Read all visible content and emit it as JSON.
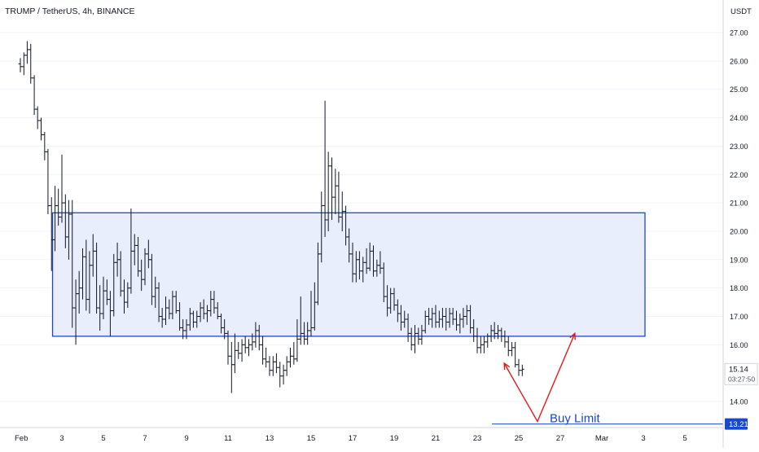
{
  "header": {
    "symbol": "TRUMP / TetherUS, 4h, BINANCE",
    "currency": "USDT"
  },
  "price_scale": {
    "ticks": [
      "27.00",
      "26.00",
      "25.00",
      "24.00",
      "23.00",
      "22.00",
      "21.00",
      "20.00",
      "19.00",
      "18.00",
      "17.00",
      "16.00",
      "14.00"
    ],
    "tick_values": [
      27,
      26,
      25,
      24,
      23,
      22,
      21,
      20,
      19,
      18,
      17,
      16,
      14
    ]
  },
  "time_axis": {
    "labels": [
      "Feb",
      "3",
      "5",
      "7",
      "9",
      "11",
      "13",
      "15",
      "17",
      "19",
      "21",
      "23",
      "25",
      "27",
      "Mar",
      "3",
      "5"
    ]
  },
  "current_price": {
    "price": "15.14",
    "countdown": "03:27:50",
    "color": "#131722"
  },
  "buy_limit": {
    "label": "Buy Limit",
    "price": "13.21",
    "value": 13.21,
    "color": "#1848cc"
  },
  "zone": {
    "top": 20.65,
    "bottom": 16.3,
    "fill": "#e8eefc",
    "stroke": "#1848cc"
  },
  "projection": {
    "color": "#e01a1a",
    "points": [
      [
        24.3,
        15.35
      ],
      [
        25.9,
        13.3
      ],
      [
        27.7,
        16.4
      ]
    ]
  },
  "colors": {
    "bars": "#131722",
    "grid": "#f0f3fa",
    "axis": "#d1d4dc",
    "text": "#131722"
  },
  "chart_data": {
    "type": "ohlc",
    "title": "TRUMP / TetherUS, 4h, BINANCE",
    "ylabel": "USDT",
    "x_unit": "day of February (4h bars)",
    "ylim": [
      13.0,
      27.5
    ],
    "xlim": [
      1,
      34
    ],
    "bars": [
      [
        1.0,
        25.9,
        26.1,
        25.6,
        25.8
      ],
      [
        1.17,
        25.8,
        26.3,
        25.5,
        26.2
      ],
      [
        1.33,
        26.2,
        26.7,
        25.9,
        26.4
      ],
      [
        1.5,
        26.4,
        26.6,
        25.2,
        25.4
      ],
      [
        1.67,
        25.4,
        25.5,
        24.1,
        24.3
      ],
      [
        1.83,
        24.3,
        24.4,
        23.6,
        23.9
      ],
      [
        2.0,
        23.9,
        24.0,
        23.2,
        23.4
      ],
      [
        2.17,
        23.4,
        23.5,
        22.5,
        22.8
      ],
      [
        2.33,
        22.8,
        22.9,
        20.6,
        20.9
      ],
      [
        2.5,
        20.9,
        21.2,
        18.6,
        19.7
      ],
      [
        2.67,
        19.7,
        21.6,
        19.3,
        20.9
      ],
      [
        2.83,
        20.9,
        21.5,
        20.2,
        20.5
      ],
      [
        3.0,
        20.5,
        22.7,
        20.3,
        21.0
      ],
      [
        3.17,
        21.0,
        21.3,
        19.4,
        19.8
      ],
      [
        3.33,
        19.8,
        21.1,
        19.0,
        20.6
      ],
      [
        3.5,
        20.6,
        21.1,
        16.6,
        17.3
      ],
      [
        3.67,
        17.3,
        18.3,
        16.0,
        17.8
      ],
      [
        3.83,
        17.8,
        18.6,
        17.1,
        18.0
      ],
      [
        4.0,
        18.0,
        19.4,
        17.6,
        19.1
      ],
      [
        4.17,
        19.1,
        19.7,
        17.2,
        17.6
      ],
      [
        4.33,
        17.6,
        19.3,
        17.1,
        18.8
      ],
      [
        4.5,
        18.8,
        19.9,
        18.4,
        19.3
      ],
      [
        4.67,
        19.3,
        19.6,
        17.1,
        17.3
      ],
      [
        4.83,
        17.3,
        18.1,
        16.5,
        17.1
      ],
      [
        5.0,
        17.1,
        18.4,
        16.9,
        17.9
      ],
      [
        5.17,
        17.9,
        18.3,
        17.4,
        17.6
      ],
      [
        5.33,
        17.6,
        17.9,
        16.3,
        17.2
      ],
      [
        5.5,
        17.2,
        19.2,
        17.0,
        18.9
      ],
      [
        5.67,
        18.9,
        19.6,
        18.4,
        19.0
      ],
      [
        5.83,
        19.0,
        19.3,
        17.7,
        17.9
      ],
      [
        6.0,
        17.9,
        18.3,
        17.1,
        17.5
      ],
      [
        6.17,
        17.5,
        18.2,
        17.3,
        18.0
      ],
      [
        6.33,
        18.0,
        20.8,
        17.8,
        19.3
      ],
      [
        6.5,
        19.3,
        19.9,
        18.8,
        19.5
      ],
      [
        6.67,
        19.5,
        19.8,
        18.4,
        18.6
      ],
      [
        6.83,
        18.6,
        19.0,
        17.9,
        18.3
      ],
      [
        7.0,
        18.3,
        19.4,
        18.1,
        19.2
      ],
      [
        7.17,
        19.2,
        19.7,
        18.7,
        19.0
      ],
      [
        7.33,
        19.0,
        19.2,
        17.4,
        17.7
      ],
      [
        7.5,
        17.7,
        18.4,
        17.3,
        18.0
      ],
      [
        7.67,
        18.0,
        18.2,
        16.8,
        17.0
      ],
      [
        7.83,
        17.0,
        17.3,
        16.6,
        16.9
      ],
      [
        8.0,
        16.9,
        17.7,
        16.7,
        17.3
      ],
      [
        8.17,
        17.3,
        17.6,
        16.9,
        17.1
      ],
      [
        8.33,
        17.1,
        17.9,
        16.9,
        17.7
      ],
      [
        8.5,
        17.7,
        17.9,
        17.1,
        17.2
      ],
      [
        8.67,
        17.2,
        17.5,
        16.5,
        16.6
      ],
      [
        8.83,
        16.6,
        16.9,
        16.2,
        16.5
      ],
      [
        9.0,
        16.5,
        16.9,
        16.2,
        16.7
      ],
      [
        9.17,
        16.7,
        17.3,
        16.5,
        17.1
      ],
      [
        9.33,
        17.1,
        17.2,
        16.6,
        16.8
      ],
      [
        9.5,
        16.8,
        17.2,
        16.6,
        17.0
      ],
      [
        9.67,
        17.0,
        17.5,
        16.8,
        17.3
      ],
      [
        9.83,
        17.3,
        17.6,
        16.9,
        17.1
      ],
      [
        10.0,
        17.1,
        17.4,
        16.8,
        17.2
      ],
      [
        10.17,
        17.2,
        17.9,
        17.0,
        17.6
      ],
      [
        10.33,
        17.6,
        17.9,
        17.1,
        17.3
      ],
      [
        10.5,
        17.3,
        17.5,
        16.9,
        17.0
      ],
      [
        10.67,
        17.0,
        17.1,
        16.4,
        16.6
      ],
      [
        10.83,
        16.6,
        16.9,
        16.2,
        16.4
      ],
      [
        11.0,
        16.4,
        16.5,
        15.3,
        15.6
      ],
      [
        11.17,
        15.6,
        16.1,
        14.3,
        15.3
      ],
      [
        11.33,
        15.3,
        16.4,
        15.0,
        15.8
      ],
      [
        11.5,
        15.8,
        16.1,
        15.5,
        15.7
      ],
      [
        11.67,
        15.7,
        16.2,
        15.4,
        16.0
      ],
      [
        11.83,
        16.0,
        16.3,
        15.7,
        15.9
      ],
      [
        12.0,
        15.9,
        16.2,
        15.6,
        16.0
      ],
      [
        12.17,
        16.0,
        16.4,
        15.8,
        16.1
      ],
      [
        12.33,
        16.1,
        16.8,
        15.9,
        16.5
      ],
      [
        12.5,
        16.5,
        16.7,
        15.8,
        16.0
      ],
      [
        12.67,
        16.0,
        16.3,
        15.3,
        15.5
      ],
      [
        12.83,
        15.5,
        15.9,
        15.2,
        15.4
      ],
      [
        13.0,
        15.4,
        15.6,
        14.9,
        15.1
      ],
      [
        13.17,
        15.1,
        15.6,
        14.9,
        15.4
      ],
      [
        13.33,
        15.4,
        15.7,
        15.0,
        15.2
      ],
      [
        13.5,
        15.2,
        15.4,
        14.5,
        14.9
      ],
      [
        13.67,
        14.9,
        15.3,
        14.6,
        15.1
      ],
      [
        13.83,
        15.1,
        15.6,
        14.9,
        15.4
      ],
      [
        14.0,
        15.4,
        15.9,
        15.2,
        15.6
      ],
      [
        14.17,
        15.6,
        16.1,
        15.3,
        15.5
      ],
      [
        14.33,
        15.5,
        16.9,
        15.4,
        16.2
      ],
      [
        14.5,
        16.2,
        17.7,
        16.0,
        16.4
      ],
      [
        14.67,
        16.4,
        16.8,
        16.0,
        16.2
      ],
      [
        14.83,
        16.2,
        16.8,
        16.0,
        16.5
      ],
      [
        15.0,
        16.5,
        17.9,
        16.3,
        16.6
      ],
      [
        15.17,
        16.6,
        18.2,
        16.5,
        17.5
      ],
      [
        15.33,
        17.5,
        19.6,
        17.4,
        19.2
      ],
      [
        15.5,
        19.2,
        21.4,
        18.9,
        20.9
      ],
      [
        15.67,
        20.9,
        24.6,
        19.8,
        20.4
      ],
      [
        15.83,
        20.4,
        22.8,
        20.0,
        22.3
      ],
      [
        16.0,
        22.3,
        22.6,
        20.4,
        21.2
      ],
      [
        16.17,
        21.2,
        22.2,
        20.6,
        21.6
      ],
      [
        16.33,
        21.6,
        22.1,
        20.3,
        20.5
      ],
      [
        16.5,
        20.5,
        21.4,
        20.0,
        20.7
      ],
      [
        16.67,
        20.7,
        20.9,
        19.5,
        19.8
      ],
      [
        16.83,
        19.8,
        20.1,
        18.9,
        19.2
      ],
      [
        17.0,
        19.2,
        19.6,
        18.2,
        18.5
      ],
      [
        17.17,
        18.5,
        19.3,
        18.2,
        19.0
      ],
      [
        17.33,
        19.0,
        19.3,
        18.3,
        18.6
      ],
      [
        17.5,
        18.6,
        19.1,
        18.2,
        18.9
      ],
      [
        17.67,
        18.9,
        19.4,
        18.5,
        18.7
      ],
      [
        17.83,
        18.7,
        19.6,
        18.6,
        19.3
      ],
      [
        18.0,
        19.3,
        19.5,
        18.4,
        18.6
      ],
      [
        18.17,
        18.6,
        19.0,
        18.4,
        18.8
      ],
      [
        18.33,
        18.8,
        19.3,
        18.5,
        18.7
      ],
      [
        18.5,
        18.7,
        18.9,
        17.5,
        17.7
      ],
      [
        18.67,
        17.7,
        18.1,
        17.0,
        17.3
      ],
      [
        18.83,
        17.3,
        18.0,
        17.1,
        17.8
      ],
      [
        19.0,
        17.8,
        18.0,
        17.2,
        17.4
      ],
      [
        19.17,
        17.4,
        17.6,
        16.8,
        17.1
      ],
      [
        19.33,
        17.1,
        17.4,
        16.5,
        16.8
      ],
      [
        19.5,
        16.8,
        17.2,
        16.6,
        16.9
      ],
      [
        19.67,
        16.9,
        17.1,
        16.1,
        16.4
      ],
      [
        19.83,
        16.4,
        16.6,
        15.8,
        16.0
      ],
      [
        20.0,
        16.0,
        16.7,
        15.7,
        16.4
      ],
      [
        20.17,
        16.4,
        16.6,
        16.0,
        16.2
      ],
      [
        20.33,
        16.2,
        16.7,
        16.0,
        16.5
      ],
      [
        20.5,
        16.5,
        17.2,
        16.4,
        17.0
      ],
      [
        20.67,
        17.0,
        17.3,
        16.7,
        16.9
      ],
      [
        20.83,
        16.9,
        17.3,
        16.6,
        17.1
      ],
      [
        21.0,
        17.1,
        17.4,
        16.6,
        16.8
      ],
      [
        21.17,
        16.8,
        17.2,
        16.6,
        16.9
      ],
      [
        21.33,
        16.9,
        17.3,
        16.6,
        17.0
      ],
      [
        21.5,
        17.0,
        17.3,
        16.5,
        16.8
      ],
      [
        21.67,
        16.8,
        17.3,
        16.6,
        17.1
      ],
      [
        21.83,
        17.1,
        17.3,
        16.7,
        16.9
      ],
      [
        22.0,
        16.9,
        17.2,
        16.5,
        16.7
      ],
      [
        22.17,
        16.7,
        17.1,
        16.4,
        16.9
      ],
      [
        22.33,
        16.9,
        17.3,
        16.6,
        17.0
      ],
      [
        22.5,
        17.0,
        17.4,
        16.7,
        17.2
      ],
      [
        22.67,
        17.2,
        17.4,
        16.4,
        16.6
      ],
      [
        22.83,
        16.6,
        16.9,
        16.1,
        16.3
      ],
      [
        23.0,
        16.3,
        16.6,
        15.7,
        15.9
      ],
      [
        23.17,
        15.9,
        16.3,
        15.7,
        16.0
      ],
      [
        23.33,
        16.0,
        16.3,
        15.7,
        16.1
      ],
      [
        23.5,
        16.1,
        16.4,
        15.9,
        16.3
      ],
      [
        23.67,
        16.3,
        16.7,
        16.1,
        16.5
      ],
      [
        23.83,
        16.5,
        16.8,
        16.2,
        16.4
      ],
      [
        24.0,
        16.4,
        16.7,
        16.2,
        16.5
      ],
      [
        24.17,
        16.5,
        16.6,
        16.1,
        16.3
      ],
      [
        24.33,
        16.3,
        16.5,
        15.9,
        16.1
      ],
      [
        24.5,
        16.1,
        16.3,
        15.6,
        15.8
      ],
      [
        24.67,
        15.8,
        16.1,
        15.6,
        15.9
      ],
      [
        24.83,
        15.9,
        16.1,
        15.2,
        15.3
      ],
      [
        25.0,
        15.3,
        15.5,
        14.9,
        15.1
      ],
      [
        25.17,
        15.1,
        15.3,
        14.9,
        15.14
      ]
    ]
  }
}
